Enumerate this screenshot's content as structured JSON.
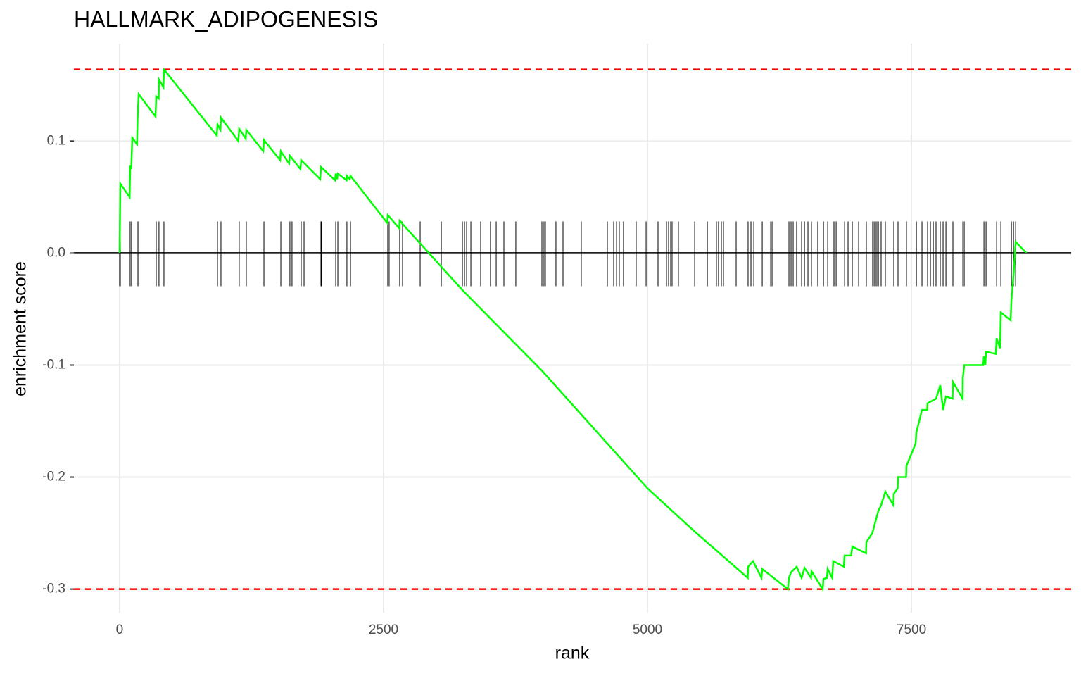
{
  "chart_data": {
    "type": "line",
    "title": "HALLMARK_ADIPOGENESIS",
    "x_label": "rank",
    "y_label": "enrichment score",
    "color": "#00ff00",
    "x": [
      0,
      7,
      95,
      100,
      110,
      120,
      165,
      170,
      180,
      340,
      347,
      370,
      373,
      415,
      420,
      920,
      927,
      955,
      960,
      1125,
      1133,
      1195,
      1200,
      1360,
      1367,
      1520,
      1527,
      1605,
      1613,
      1713,
      1720,
      1900,
      1907,
      2040,
      2047,
      2060,
      2067,
      2150,
      2153,
      2180,
      2187,
      2535,
      2540,
      2650,
      2653,
      2675,
      2680,
      3247,
      4000,
      5000,
      5440,
      5950,
      5953,
      6000,
      6080,
      6087,
      6330,
      6340,
      6360,
      6413,
      6460,
      6487,
      6550,
      6553,
      6660,
      6667,
      6700,
      6707,
      6750,
      6760,
      6860,
      6867,
      6930,
      6940,
      7070,
      7073,
      7130,
      7187,
      7213,
      7253,
      7330,
      7333,
      7370,
      7373,
      7450,
      7453,
      7540,
      7547,
      7600,
      7650,
      7653,
      7733,
      7773,
      7800,
      7827,
      7890,
      7893,
      7985,
      7987,
      8000,
      8180,
      8187,
      8200,
      8207,
      8300,
      8307,
      8340,
      8347,
      8440,
      8447,
      8467,
      8487,
      8590
    ],
    "values": [
      0,
      0.062,
      0.05,
      0.078,
      0.075,
      0.103,
      0.097,
      0.12,
      0.142,
      0.122,
      0.14,
      0.138,
      0.155,
      0.148,
      0.164,
      0.105,
      0.115,
      0.11,
      0.121,
      0.1,
      0.111,
      0.102,
      0.11,
      0.091,
      0.101,
      0.083,
      0.091,
      0.08,
      0.087,
      0.075,
      0.083,
      0.066,
      0.077,
      0.065,
      0.071,
      0.066,
      0.071,
      0.065,
      0.069,
      0.066,
      0.069,
      0.027,
      0.034,
      0.022,
      0.029,
      0.027,
      0.026,
      -0.033,
      -0.105,
      -0.21,
      -0.248,
      -0.29,
      -0.28,
      -0.275,
      -0.29,
      -0.282,
      -0.3,
      -0.29,
      -0.285,
      -0.28,
      -0.29,
      -0.281,
      -0.29,
      -0.284,
      -0.3,
      -0.291,
      -0.29,
      -0.282,
      -0.29,
      -0.275,
      -0.28,
      -0.27,
      -0.27,
      -0.262,
      -0.268,
      -0.258,
      -0.25,
      -0.23,
      -0.225,
      -0.213,
      -0.225,
      -0.215,
      -0.21,
      -0.2,
      -0.2,
      -0.19,
      -0.17,
      -0.16,
      -0.14,
      -0.14,
      -0.134,
      -0.13,
      -0.118,
      -0.14,
      -0.128,
      -0.13,
      -0.115,
      -0.13,
      -0.112,
      -0.1,
      -0.1,
      -0.092,
      -0.1,
      -0.088,
      -0.09,
      -0.076,
      -0.085,
      -0.053,
      -0.06,
      -0.042,
      -0.02,
      0.01,
      0
    ],
    "hits": [
      0,
      7,
      100,
      113,
      167,
      180,
      347,
      373,
      420,
      927,
      960,
      1133,
      1200,
      1367,
      1527,
      1613,
      1633,
      1720,
      1747,
      1907,
      1913,
      2047,
      2067,
      2153,
      2187,
      2540,
      2553,
      2653,
      2680,
      2847,
      3047,
      3247,
      3267,
      3287,
      3327,
      3420,
      3513,
      3567,
      3640,
      3753,
      4000,
      4020,
      4033,
      4133,
      4200,
      4373,
      4620,
      4680,
      4707,
      4733,
      4773,
      4893,
      4987,
      5100,
      5180,
      5200,
      5220,
      5233,
      5293,
      5447,
      5567,
      5653,
      5673,
      5700,
      5720,
      5840,
      5953,
      5980,
      6007,
      6087,
      6167,
      6180,
      6340,
      6360,
      6380,
      6413,
      6460,
      6487,
      6520,
      6553,
      6613,
      6667,
      6707,
      6760,
      6773,
      6787,
      6867,
      6900,
      6940,
      7000,
      7073,
      7133,
      7147,
      7160,
      7173,
      7187,
      7213,
      7253,
      7333,
      7373,
      7453,
      7547,
      7600,
      7653,
      7680,
      7707,
      7733,
      7773,
      7800,
      7827,
      7893,
      7987,
      8000,
      8187,
      8207,
      8307,
      8347,
      8447,
      8467,
      8487
    ],
    "hlines": [
      0.164,
      -0.3
    ],
    "hline_color": "#ff0000",
    "xlim": [
      -433,
      9013
    ],
    "ylim": [
      -0.321,
      0.187
    ],
    "xticks": [
      0,
      2500,
      5000,
      7500
    ],
    "yticks": [
      0.1,
      {
        "value": 0,
        "label": "0.0"
      },
      -0.1,
      -0.2,
      -0.3
    ],
    "grid": true
  }
}
